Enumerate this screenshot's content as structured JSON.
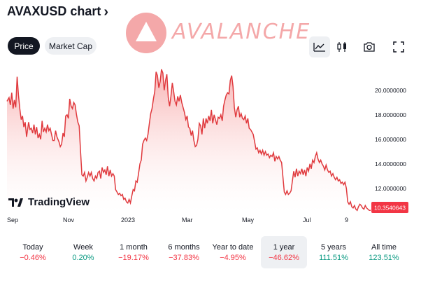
{
  "header": {
    "title": "AVAXUSD chart",
    "chevron": "›"
  },
  "tabs": [
    {
      "label": "Price",
      "selected": true
    },
    {
      "label": "Market Cap",
      "selected": false
    }
  ],
  "logo": {
    "text": "AVALANCHE",
    "color": "#e84142"
  },
  "toolbar": {
    "icons": [
      "line-chart-icon",
      "candlestick-icon",
      "camera-icon",
      "fullscreen-icon"
    ]
  },
  "watermark": {
    "text": "TradingView"
  },
  "colors": {
    "line": "#e03a3e",
    "fill_top": "#f7a6a6",
    "fill_bottom": "#ffffff",
    "price_label_bg": "#f23645",
    "negative": "#f23645",
    "positive": "#089981"
  },
  "chart_data": {
    "type": "area",
    "x_ticks": [
      "Sep",
      "Nov",
      "2023",
      "Mar",
      "May",
      "Jul",
      "9"
    ],
    "y_ticks": [
      "20.0000000",
      "18.0000000",
      "16.0000000",
      "14.0000000",
      "12.0000000"
    ],
    "ylim": [
      10.1,
      22.1
    ],
    "last_price_label": "10.3540643",
    "points": [
      [
        0,
        19.1
      ],
      [
        3,
        19.4
      ],
      [
        5,
        18.8
      ],
      [
        7,
        19.8
      ],
      [
        9,
        18.5
      ],
      [
        11,
        19.2
      ],
      [
        13,
        18.6
      ],
      [
        15,
        21.1
      ],
      [
        17,
        19.6
      ],
      [
        19,
        18.5
      ],
      [
        21,
        17.6
      ],
      [
        23,
        17.9
      ],
      [
        25,
        17.0
      ],
      [
        27,
        17.4
      ],
      [
        29,
        16.2
      ],
      [
        32,
        17.4
      ],
      [
        34,
        16.8
      ],
      [
        36,
        16.9
      ],
      [
        38,
        16.5
      ],
      [
        40,
        17.2
      ],
      [
        42,
        16.4
      ],
      [
        44,
        17.0
      ],
      [
        46,
        16.1
      ],
      [
        48,
        16.4
      ],
      [
        50,
        16.0
      ],
      [
        52,
        17.5
      ],
      [
        54,
        16.6
      ],
      [
        56,
        16.9
      ],
      [
        58,
        16.6
      ],
      [
        60,
        17.2
      ],
      [
        62,
        16.7
      ],
      [
        64,
        16.9
      ],
      [
        66,
        16.4
      ],
      [
        68,
        15.9
      ],
      [
        70,
        15.9
      ],
      [
        72,
        16.7
      ],
      [
        74,
        16.2
      ],
      [
        77,
        15.8
      ],
      [
        79,
        15.4
      ],
      [
        81,
        15.6
      ],
      [
        83,
        16.5
      ],
      [
        85,
        16.2
      ],
      [
        87,
        17.9
      ],
      [
        89,
        18.0
      ],
      [
        91,
        17.7
      ],
      [
        93,
        19.3
      ],
      [
        95,
        18.7
      ],
      [
        97,
        18.5
      ],
      [
        99,
        19.0
      ],
      [
        101,
        18.8
      ],
      [
        103,
        18.0
      ],
      [
        105,
        17.4
      ],
      [
        107,
        17.1
      ],
      [
        109,
        15.0
      ],
      [
        111,
        13.1
      ],
      [
        113,
        13.0
      ],
      [
        115,
        13.3
      ],
      [
        117,
        12.6
      ],
      [
        119,
        12.9
      ],
      [
        121,
        13.3
      ],
      [
        123,
        13.0
      ],
      [
        125,
        13.3
      ],
      [
        127,
        12.8
      ],
      [
        129,
        12.6
      ],
      [
        131,
        13.0
      ],
      [
        133,
        12.8
      ],
      [
        135,
        13.3
      ],
      [
        137,
        13.4
      ],
      [
        139,
        12.8
      ],
      [
        141,
        13.7
      ],
      [
        143,
        13.3
      ],
      [
        145,
        13.5
      ],
      [
        147,
        13.1
      ],
      [
        149,
        13.8
      ],
      [
        151,
        13.0
      ],
      [
        153,
        13.5
      ],
      [
        155,
        13.0
      ],
      [
        157,
        13.2
      ],
      [
        159,
        13.0
      ],
      [
        161,
        11.9
      ],
      [
        163,
        11.7
      ],
      [
        165,
        11.5
      ],
      [
        167,
        11.6
      ],
      [
        169,
        11.4
      ],
      [
        171,
        11.5
      ],
      [
        173,
        11.1
      ],
      [
        175,
        11.2
      ],
      [
        177,
        10.9
      ],
      [
        179,
        10.8
      ],
      [
        181,
        11.1
      ],
      [
        183,
        10.8
      ],
      [
        185,
        11.4
      ],
      [
        187,
        11.9
      ],
      [
        189,
        11.8
      ],
      [
        191,
        12.6
      ],
      [
        193,
        12.5
      ],
      [
        195,
        13.2
      ],
      [
        197,
        14.0
      ],
      [
        199,
        14.3
      ],
      [
        201,
        15.6
      ],
      [
        203,
        15.9
      ],
      [
        205,
        16.1
      ],
      [
        207,
        15.9
      ],
      [
        209,
        16.4
      ],
      [
        211,
        17.3
      ],
      [
        213,
        18.1
      ],
      [
        215,
        18.5
      ],
      [
        217,
        19.3
      ],
      [
        219,
        19.9
      ],
      [
        221,
        21.5
      ],
      [
        223,
        21.2
      ],
      [
        225,
        20.2
      ],
      [
        227,
        20.7
      ],
      [
        229,
        21.7
      ],
      [
        231,
        21.4
      ],
      [
        233,
        20.0
      ],
      [
        235,
        20.8
      ],
      [
        237,
        21.3
      ],
      [
        239,
        19.4
      ],
      [
        241,
        18.7
      ],
      [
        243,
        19.5
      ],
      [
        245,
        20.6
      ],
      [
        247,
        19.9
      ],
      [
        249,
        19.1
      ],
      [
        251,
        18.8
      ],
      [
        253,
        19.5
      ],
      [
        255,
        19.1
      ],
      [
        257,
        19.6
      ],
      [
        259,
        19.0
      ],
      [
        261,
        18.6
      ],
      [
        263,
        18.2
      ],
      [
        265,
        17.6
      ],
      [
        267,
        17.9
      ],
      [
        269,
        17.0
      ],
      [
        271,
        16.9
      ],
      [
        273,
        16.3
      ],
      [
        275,
        16.7
      ],
      [
        277,
        15.9
      ],
      [
        279,
        15.4
      ],
      [
        281,
        15.5
      ],
      [
        283,
        16.0
      ],
      [
        285,
        17.3
      ],
      [
        287,
        17.1
      ],
      [
        289,
        16.4
      ],
      [
        291,
        17.7
      ],
      [
        293,
        16.9
      ],
      [
        295,
        17.7
      ],
      [
        297,
        17.3
      ],
      [
        299,
        17.9
      ],
      [
        301,
        17.5
      ],
      [
        303,
        18.4
      ],
      [
        305,
        17.3
      ],
      [
        307,
        18.0
      ],
      [
        309,
        17.6
      ],
      [
        311,
        17.2
      ],
      [
        313,
        17.8
      ],
      [
        315,
        17.7
      ],
      [
        317,
        18.0
      ],
      [
        319,
        17.5
      ],
      [
        321,
        18.7
      ],
      [
        323,
        19.2
      ],
      [
        325,
        19.6
      ],
      [
        327,
        19.8
      ],
      [
        329,
        19.7
      ],
      [
        331,
        20.8
      ],
      [
        333,
        21.2
      ],
      [
        335,
        20.3
      ],
      [
        337,
        18.6
      ],
      [
        339,
        17.8
      ],
      [
        341,
        18.4
      ],
      [
        343,
        18.7
      ],
      [
        345,
        17.8
      ],
      [
        347,
        18.1
      ],
      [
        349,
        17.7
      ],
      [
        351,
        17.6
      ],
      [
        353,
        17.9
      ],
      [
        355,
        17.3
      ],
      [
        357,
        17.7
      ],
      [
        359,
        16.9
      ],
      [
        361,
        16.8
      ],
      [
        363,
        16.6
      ],
      [
        365,
        16.4
      ],
      [
        367,
        15.8
      ],
      [
        369,
        15.2
      ],
      [
        371,
        15.3
      ],
      [
        373,
        14.9
      ],
      [
        375,
        15.1
      ],
      [
        377,
        14.8
      ],
      [
        379,
        15.1
      ],
      [
        381,
        14.7
      ],
      [
        383,
        15.0
      ],
      [
        385,
        14.7
      ],
      [
        387,
        14.8
      ],
      [
        389,
        14.5
      ],
      [
        391,
        14.7
      ],
      [
        393,
        14.6
      ],
      [
        395,
        14.9
      ],
      [
        397,
        14.2
      ],
      [
        399,
        14.6
      ],
      [
        401,
        14.4
      ],
      [
        403,
        14.6
      ],
      [
        405,
        14.3
      ],
      [
        407,
        14.1
      ],
      [
        409,
        12.9
      ],
      [
        411,
        11.7
      ],
      [
        413,
        11.5
      ],
      [
        415,
        11.8
      ],
      [
        417,
        11.5
      ],
      [
        419,
        11.6
      ],
      [
        421,
        11.8
      ],
      [
        423,
        12.6
      ],
      [
        425,
        13.4
      ],
      [
        427,
        12.9
      ],
      [
        429,
        13.6
      ],
      [
        431,
        13.0
      ],
      [
        433,
        13.4
      ],
      [
        435,
        13.2
      ],
      [
        437,
        13.6
      ],
      [
        439,
        13.1
      ],
      [
        441,
        13.5
      ],
      [
        443,
        13.0
      ],
      [
        445,
        13.7
      ],
      [
        447,
        13.4
      ],
      [
        449,
        14.0
      ],
      [
        451,
        13.6
      ],
      [
        453,
        14.3
      ],
      [
        455,
        14.1
      ],
      [
        457,
        14.6
      ],
      [
        459,
        14.9
      ],
      [
        461,
        14.4
      ],
      [
        463,
        14.1
      ],
      [
        465,
        14.3
      ],
      [
        467,
        14.0
      ],
      [
        469,
        13.8
      ],
      [
        471,
        13.5
      ],
      [
        473,
        13.9
      ],
      [
        475,
        13.5
      ],
      [
        477,
        13.3
      ],
      [
        479,
        13.4
      ],
      [
        481,
        13.0
      ],
      [
        483,
        13.2
      ],
      [
        485,
        12.9
      ],
      [
        487,
        12.7
      ],
      [
        489,
        12.9
      ],
      [
        491,
        12.6
      ],
      [
        493,
        12.7
      ],
      [
        495,
        12.4
      ],
      [
        497,
        12.5
      ],
      [
        499,
        12.3
      ],
      [
        501,
        12.5
      ],
      [
        503,
        12.0
      ],
      [
        505,
        10.9
      ],
      [
        507,
        10.7
      ],
      [
        509,
        10.9
      ],
      [
        511,
        10.5
      ],
      [
        513,
        10.4
      ],
      [
        515,
        10.6
      ],
      [
        517,
        10.3
      ],
      [
        519,
        10.2
      ],
      [
        521,
        10.5
      ],
      [
        523,
        10.7
      ],
      [
        525,
        10.6
      ],
      [
        527,
        10.4
      ],
      [
        529,
        10.3
      ],
      [
        531,
        10.6
      ],
      [
        533,
        10.4
      ],
      [
        535,
        10.3
      ],
      [
        537,
        10.2
      ],
      [
        539,
        10.2
      ]
    ]
  },
  "periods": [
    {
      "label": "Today",
      "value": "−0.46%",
      "sign": "neg",
      "selected": false
    },
    {
      "label": "Week",
      "value": "0.20%",
      "sign": "pos",
      "selected": false
    },
    {
      "label": "1 month",
      "value": "−19.17%",
      "sign": "neg",
      "selected": false
    },
    {
      "label": "6 months",
      "value": "−37.83%",
      "sign": "neg",
      "selected": false
    },
    {
      "label": "Year to date",
      "value": "−4.95%",
      "sign": "neg",
      "selected": false
    },
    {
      "label": "1 year",
      "value": "−46.62%",
      "sign": "neg",
      "selected": true
    },
    {
      "label": "5 years",
      "value": "111.51%",
      "sign": "pos",
      "selected": false
    },
    {
      "label": "All time",
      "value": "123.51%",
      "sign": "pos",
      "selected": false
    }
  ]
}
